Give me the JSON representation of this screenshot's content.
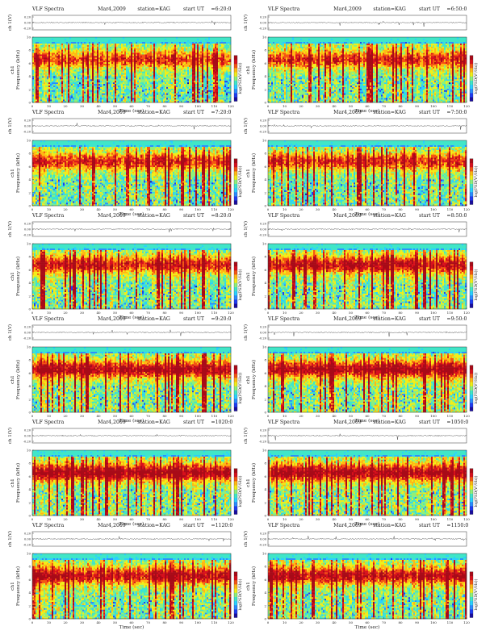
{
  "page": {
    "panel_header_prefix": "VLF Spectra",
    "date_text": "Mar4,2009",
    "station_text": "station=KAG",
    "start_label": "start  UT",
    "amp_axis_label": "ch 1(V)",
    "amp_ticks": [
      "0.20",
      "0.00",
      "-0.20"
    ],
    "freq_axis_label": "Frequency (kHz)",
    "channel_label": "ch1",
    "freq_ticks": [
      "0",
      "2",
      "4",
      "6",
      "8",
      "10"
    ],
    "time_axis_label": "Time (sec)",
    "time_ticks": [
      "0",
      "10",
      "20",
      "30",
      "40",
      "50",
      "60",
      "70",
      "80",
      "90",
      "100",
      "110",
      "120"
    ],
    "colorbar_label": "log(PSD(V²/Hz))"
  },
  "chart_data": [
    {
      "type": "heatmap",
      "title": "VLF Spectra",
      "start_ut": "=6:20:0",
      "xlabel": "Time (sec)",
      "ylabel": "Frequency (kHz)",
      "xlim": [
        0,
        120
      ],
      "ylim": [
        0,
        10
      ],
      "colormap": [
        "#1a0d9e",
        "#1f3cf2",
        "#2a8cff",
        "#2ad0ff",
        "#40e6c8",
        "#8ef07a",
        "#f2ee18",
        "#ffb814",
        "#f45512",
        "#d8101c",
        "#a80a18"
      ],
      "band_center_khz": 6.6,
      "band_intensity": 0.8
    },
    {
      "type": "heatmap",
      "title": "VLF Spectra",
      "start_ut": "=6:50:0",
      "xlabel": "Time (sec)",
      "ylabel": "Frequency (kHz)",
      "xlim": [
        0,
        120
      ],
      "ylim": [
        0,
        10
      ],
      "colormap": [
        "#1a0d9e",
        "#1f3cf2",
        "#2a8cff",
        "#2ad0ff",
        "#40e6c8",
        "#8ef07a",
        "#f2ee18",
        "#ffb814",
        "#f45512",
        "#d8101c",
        "#a80a18"
      ],
      "band_center_khz": 6.6,
      "band_intensity": 0.82
    },
    {
      "type": "heatmap",
      "title": "VLF Spectra",
      "start_ut": "=7:20:0",
      "xlabel": "Time (sec)",
      "ylabel": "Frequency (kHz)",
      "xlim": [
        0,
        120
      ],
      "ylim": [
        0,
        10
      ],
      "colormap": [
        "#1a0d9e",
        "#1f3cf2",
        "#2a8cff",
        "#2ad0ff",
        "#40e6c8",
        "#8ef07a",
        "#f2ee18",
        "#ffb814",
        "#f45512",
        "#d8101c",
        "#a80a18"
      ],
      "band_center_khz": 6.8,
      "band_intensity": 0.85
    },
    {
      "type": "heatmap",
      "title": "VLF Spectra",
      "start_ut": "=7:50:0",
      "xlabel": "Time (sec)",
      "ylabel": "Frequency (kHz)",
      "xlim": [
        0,
        120
      ],
      "ylim": [
        0,
        10
      ],
      "colormap": [
        "#1a0d9e",
        "#1f3cf2",
        "#2a8cff",
        "#2ad0ff",
        "#40e6c8",
        "#8ef07a",
        "#f2ee18",
        "#ffb814",
        "#f45512",
        "#d8101c",
        "#a80a18"
      ],
      "band_center_khz": 6.8,
      "band_intensity": 0.85
    },
    {
      "type": "heatmap",
      "title": "VLF Spectra",
      "start_ut": "=8:20:0",
      "xlabel": "Time (sec)",
      "ylabel": "Frequency (kHz)",
      "xlim": [
        0,
        120
      ],
      "ylim": [
        0,
        10
      ],
      "colormap": [
        "#1a0d9e",
        "#1f3cf2",
        "#2a8cff",
        "#2ad0ff",
        "#40e6c8",
        "#8ef07a",
        "#f2ee18",
        "#ffb814",
        "#f45512",
        "#d8101c",
        "#a80a18"
      ],
      "band_center_khz": 6.8,
      "band_intensity": 0.9
    },
    {
      "type": "heatmap",
      "title": "VLF Spectra",
      "start_ut": "=8:50:0",
      "xlabel": "Time (sec)",
      "ylabel": "Frequency (kHz)",
      "xlim": [
        0,
        120
      ],
      "ylim": [
        0,
        10
      ],
      "colormap": [
        "#1a0d9e",
        "#1f3cf2",
        "#2a8cff",
        "#2ad0ff",
        "#40e6c8",
        "#8ef07a",
        "#f2ee18",
        "#ffb814",
        "#f45512",
        "#d8101c",
        "#a80a18"
      ],
      "band_center_khz": 6.8,
      "band_intensity": 0.95
    },
    {
      "type": "heatmap",
      "title": "VLF Spectra",
      "start_ut": "=9:20:0",
      "xlabel": "Time (sec)",
      "ylabel": "Frequency (kHz)",
      "xlim": [
        0,
        120
      ],
      "ylim": [
        0,
        10
      ],
      "colormap": [
        "#1a0d9e",
        "#1f3cf2",
        "#2a8cff",
        "#2ad0ff",
        "#40e6c8",
        "#8ef07a",
        "#f2ee18",
        "#ffb814",
        "#f45512",
        "#d8101c",
        "#a80a18"
      ],
      "band_center_khz": 6.6,
      "band_intensity": 1.0
    },
    {
      "type": "heatmap",
      "title": "VLF Spectra",
      "start_ut": "=9:50:0",
      "xlabel": "Time (sec)",
      "ylabel": "Frequency (kHz)",
      "xlim": [
        0,
        120
      ],
      "ylim": [
        0,
        10
      ],
      "colormap": [
        "#1a0d9e",
        "#1f3cf2",
        "#2a8cff",
        "#2ad0ff",
        "#40e6c8",
        "#8ef07a",
        "#f2ee18",
        "#ffb814",
        "#f45512",
        "#d8101c",
        "#a80a18"
      ],
      "band_center_khz": 6.6,
      "band_intensity": 1.0
    },
    {
      "type": "heatmap",
      "title": "VLF Spectra",
      "start_ut": "=1020:0",
      "xlabel": "Time (sec)",
      "ylabel": "Frequency (kHz)",
      "xlim": [
        0,
        120
      ],
      "ylim": [
        0,
        10
      ],
      "colormap": [
        "#1a0d9e",
        "#1f3cf2",
        "#2a8cff",
        "#2ad0ff",
        "#40e6c8",
        "#8ef07a",
        "#f2ee18",
        "#ffb814",
        "#f45512",
        "#d8101c",
        "#a80a18"
      ],
      "band_center_khz": 6.6,
      "band_intensity": 1.05
    },
    {
      "type": "heatmap",
      "title": "VLF Spectra",
      "start_ut": "=1050:0",
      "xlabel": "Time (sec)",
      "ylabel": "Frequency (kHz)",
      "xlim": [
        0,
        120
      ],
      "ylim": [
        0,
        10
      ],
      "colormap": [
        "#1a0d9e",
        "#1f3cf2",
        "#2a8cff",
        "#2ad0ff",
        "#40e6c8",
        "#8ef07a",
        "#f2ee18",
        "#ffb814",
        "#f45512",
        "#d8101c",
        "#a80a18"
      ],
      "band_center_khz": 6.6,
      "band_intensity": 1.0
    },
    {
      "type": "heatmap",
      "title": "VLF Spectra",
      "start_ut": "=1120:0",
      "xlabel": "Time (sec)",
      "ylabel": "Frequency (kHz)",
      "xlim": [
        0,
        120
      ],
      "ylim": [
        0,
        10
      ],
      "colormap": [
        "#1a0d9e",
        "#1f3cf2",
        "#2a8cff",
        "#2ad0ff",
        "#40e6c8",
        "#8ef07a",
        "#f2ee18",
        "#ffb814",
        "#f45512",
        "#d8101c",
        "#a80a18"
      ],
      "band_center_khz": 6.6,
      "band_intensity": 0.95
    },
    {
      "type": "heatmap",
      "title": "VLF Spectra",
      "start_ut": "=1150:0",
      "xlabel": "Time (sec)",
      "ylabel": "Frequency (kHz)",
      "xlim": [
        0,
        120
      ],
      "ylim": [
        0,
        10
      ],
      "colormap": [
        "#1a0d9e",
        "#1f3cf2",
        "#2a8cff",
        "#2ad0ff",
        "#40e6c8",
        "#8ef07a",
        "#f2ee18",
        "#ffb814",
        "#f45512",
        "#d8101c",
        "#a80a18"
      ],
      "band_center_khz": 6.6,
      "band_intensity": 0.95
    }
  ]
}
